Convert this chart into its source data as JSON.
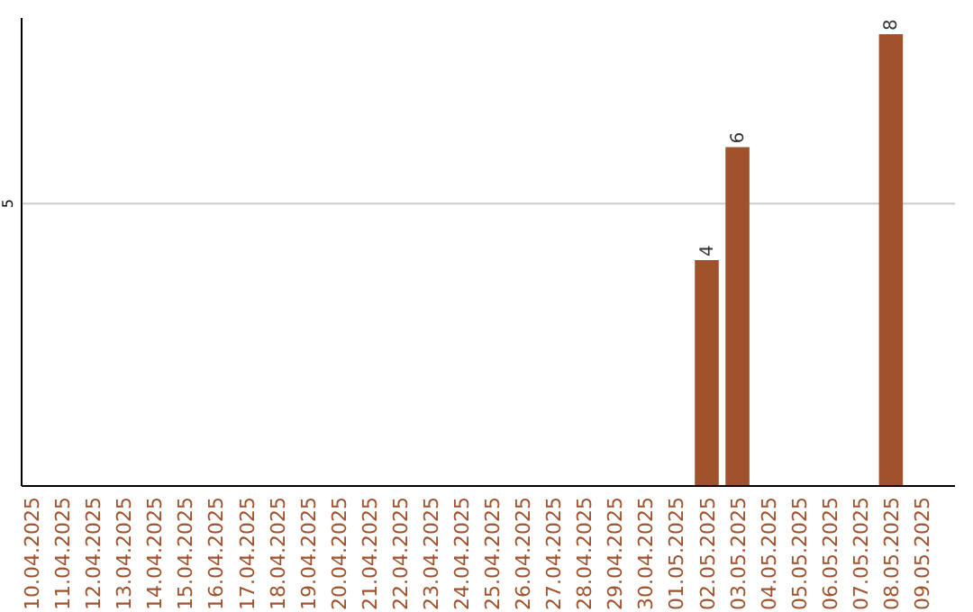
{
  "chart_data": {
    "type": "bar",
    "categories": [
      "10.04.2025",
      "11.04.2025",
      "12.04.2025",
      "13.04.2025",
      "14.04.2025",
      "15.04.2025",
      "16.04.2025",
      "17.04.2025",
      "18.04.2025",
      "19.04.2025",
      "20.04.2025",
      "21.04.2025",
      "22.04.2025",
      "23.04.2025",
      "24.04.2025",
      "25.04.2025",
      "26.04.2025",
      "27.04.2025",
      "28.04.2025",
      "29.04.2025",
      "30.04.2025",
      "01.05.2025",
      "02.05.2025",
      "03.05.2025",
      "04.05.2025",
      "05.05.2025",
      "06.05.2025",
      "07.05.2025",
      "08.05.2025",
      "09.05.2025"
    ],
    "values": [
      null,
      null,
      null,
      null,
      null,
      null,
      null,
      null,
      null,
      null,
      null,
      null,
      null,
      null,
      null,
      null,
      null,
      null,
      null,
      null,
      null,
      null,
      4,
      6,
      null,
      null,
      null,
      null,
      8,
      null
    ],
    "color": "#a0522d",
    "ylim": [
      0,
      8
    ],
    "yticks": [
      5
    ],
    "grid": "y",
    "data_labels": true
  }
}
